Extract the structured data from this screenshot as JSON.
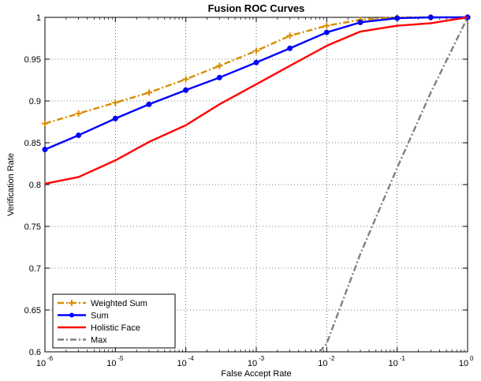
{
  "chart_data": {
    "type": "line",
    "title": "Fusion ROC Curves",
    "xlabel": "False Accept Rate",
    "ylabel": "Verification Rate",
    "xscale": "log",
    "xlim": [
      1e-06,
      1
    ],
    "ylim": [
      0.6,
      1
    ],
    "x_ticks": [
      {
        "base": "10",
        "exp": "-6"
      },
      {
        "base": "10",
        "exp": "-5"
      },
      {
        "base": "10",
        "exp": "-4"
      },
      {
        "base": "10",
        "exp": "-3"
      },
      {
        "base": "10",
        "exp": "-2"
      },
      {
        "base": "10",
        "exp": "-1"
      },
      {
        "base": "10",
        "exp": "0"
      }
    ],
    "y_ticks": [
      "0.6",
      "0.65",
      "0.7",
      "0.75",
      "0.8",
      "0.85",
      "0.9",
      "0.95",
      "1"
    ],
    "grid": true,
    "legend_position": "bottom-left",
    "series": [
      {
        "name": "Weighted Sum",
        "color": "#d98c00",
        "style": "dash-dot",
        "marker": "plus",
        "x": [
          1e-06,
          3e-06,
          1e-05,
          3e-05,
          0.0001,
          0.0003,
          0.001,
          0.003,
          0.01,
          0.03,
          0.1,
          0.3,
          1
        ],
        "y": [
          0.873,
          0.885,
          0.898,
          0.91,
          0.926,
          0.942,
          0.96,
          0.978,
          0.99,
          0.997,
          1.0,
          1.0,
          1.0
        ]
      },
      {
        "name": "Sum",
        "color": "#0000ff",
        "style": "solid",
        "marker": "dot",
        "x": [
          1e-06,
          3e-06,
          1e-05,
          3e-05,
          0.0001,
          0.0003,
          0.001,
          0.003,
          0.01,
          0.03,
          0.1,
          0.3,
          1
        ],
        "y": [
          0.842,
          0.859,
          0.879,
          0.896,
          0.913,
          0.928,
          0.946,
          0.963,
          0.982,
          0.994,
          0.999,
          1.0,
          1.0
        ]
      },
      {
        "name": "Holistic Face",
        "color": "#ff0000",
        "style": "solid",
        "marker": "none",
        "x": [
          1e-06,
          3e-06,
          1e-05,
          3e-05,
          0.0001,
          0.0003,
          0.001,
          0.003,
          0.01,
          0.03,
          0.1,
          0.3,
          1
        ],
        "y": [
          0.801,
          0.809,
          0.829,
          0.851,
          0.871,
          0.896,
          0.92,
          0.942,
          0.966,
          0.983,
          0.99,
          0.993,
          1.0
        ]
      },
      {
        "name": "Max",
        "color": "#808080",
        "style": "dash-dot",
        "marker": "none",
        "x": [
          0.0079,
          0.01,
          0.03,
          0.1,
          0.3,
          1
        ],
        "y": [
          0.6,
          0.61,
          0.717,
          0.82,
          0.91,
          1.0
        ]
      }
    ]
  }
}
